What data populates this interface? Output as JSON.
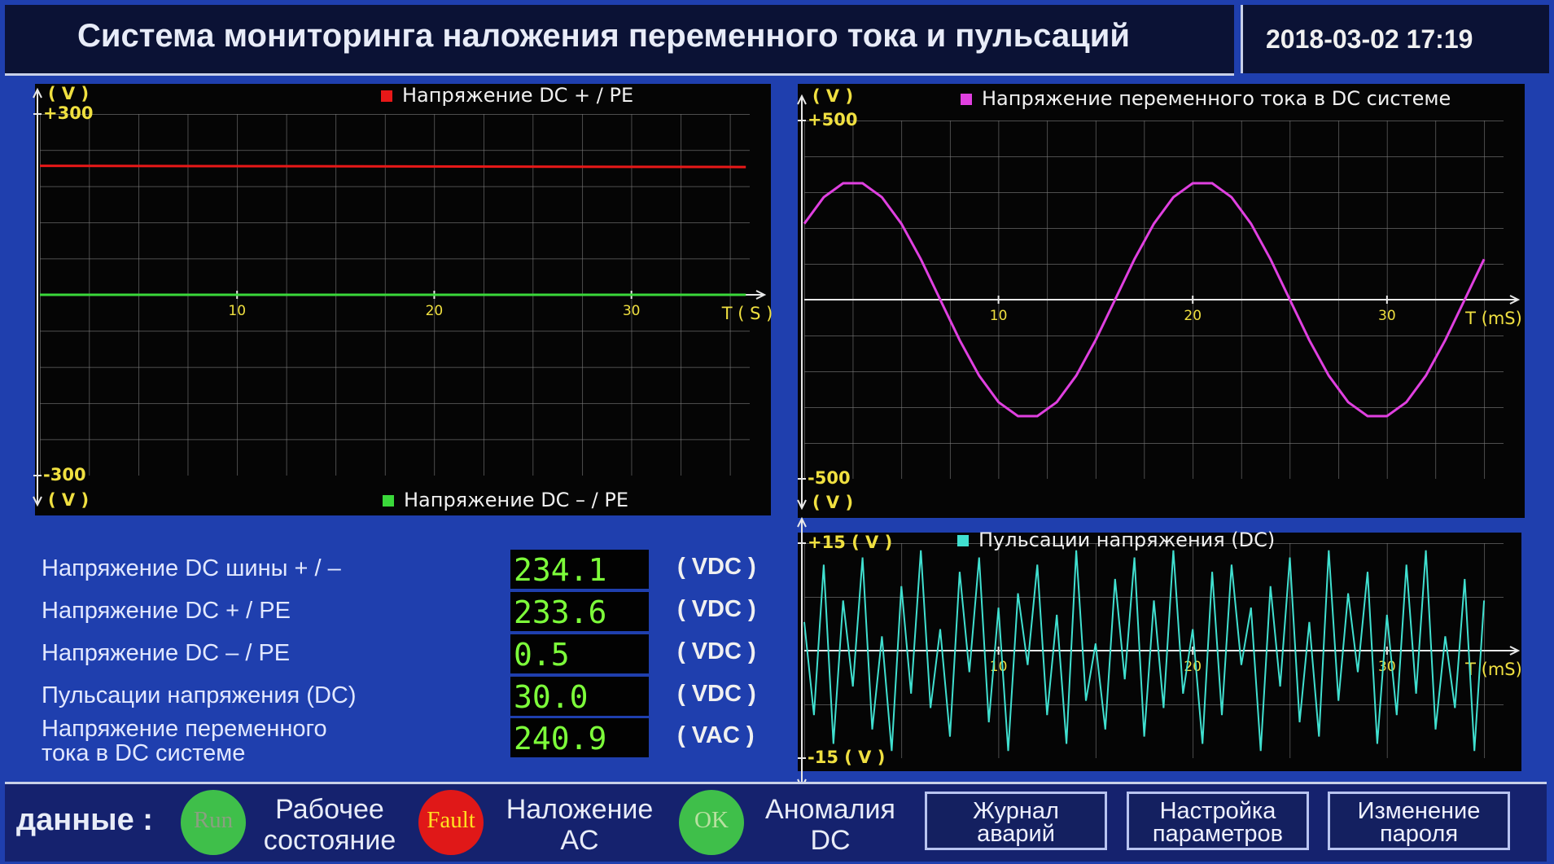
{
  "header": {
    "title": "Система мониторинга наложения переменного тока и пульсаций",
    "datetime": "2018-03-02 17:19"
  },
  "chart_data": [
    {
      "type": "line",
      "x": [
        0,
        35.8
      ],
      "series": [
        {
          "name": "Напряжение DC  + / PE",
          "color": "#e81818",
          "values": [
            214,
            212
          ]
        },
        {
          "name": "Напряжение DC  – / PE",
          "color": "#3ad83a",
          "values": [
            0,
            0
          ]
        }
      ],
      "xlabel": "T ( S )",
      "ylabel": "( V )",
      "xlim": [
        0,
        36
      ],
      "ylim": [
        -300,
        300
      ],
      "xticks": [
        10,
        20,
        30
      ],
      "yticks": [
        -300,
        {
          "value": 300,
          "label": "+300"
        }
      ],
      "grid": true
    },
    {
      "type": "line",
      "x": [
        0,
        1,
        2,
        3,
        4,
        5,
        6,
        7,
        8,
        9,
        10,
        11,
        12,
        13,
        14,
        15,
        16,
        17,
        18,
        19,
        20,
        21,
        22,
        23,
        24,
        25,
        26,
        27,
        28,
        29,
        30,
        31,
        32,
        33,
        34,
        35
      ],
      "series": [
        {
          "name": "Напряжение переменного тока в DC системе",
          "color": "#e040e0",
          "values": [
            212,
            286,
            325,
            325,
            286,
            212,
            113,
            0,
            -113,
            -212,
            -286,
            -325,
            -325,
            -286,
            -212,
            -113,
            0,
            113,
            212,
            286,
            325,
            325,
            286,
            212,
            113,
            0,
            -113,
            -212,
            -286,
            -325,
            -325,
            -286,
            -212,
            -113,
            0,
            113
          ]
        }
      ],
      "xlabel": "T (mS)",
      "ylabel": "( V )",
      "xlim": [
        0,
        36
      ],
      "ylim": [
        -500,
        500
      ],
      "xticks": [
        10,
        20,
        30
      ],
      "yticks": [
        -500,
        {
          "value": 500,
          "label": "+500"
        }
      ],
      "grid": true
    },
    {
      "type": "line",
      "x": [
        0,
        0.5,
        1,
        1.5,
        2,
        2.5,
        3,
        3.5,
        4,
        4.5,
        5,
        5.5,
        6,
        6.5,
        7,
        7.5,
        8,
        8.5,
        9,
        9.5,
        10,
        10.5,
        11,
        11.5,
        12,
        12.5,
        13,
        13.5,
        14,
        14.5,
        15,
        15.5,
        16,
        16.5,
        17,
        17.5,
        18,
        18.5,
        19,
        19.5,
        20,
        20.5,
        21,
        21.5,
        22,
        22.5,
        23,
        23.5,
        24,
        24.5,
        25,
        25.5,
        26,
        26.5,
        27,
        27.5,
        28,
        28.5,
        29,
        29.5,
        30,
        30.5,
        31,
        31.5,
        32,
        32.5,
        33,
        33.5,
        34,
        34.5,
        35
      ],
      "series": [
        {
          "name": "Пульсации напряжения (DC)",
          "color": "#40e0d0",
          "values": [
            4,
            -9,
            12,
            -13,
            7,
            -5,
            13,
            -11,
            2,
            -14,
            9,
            -6,
            14,
            -8,
            3,
            -12,
            11,
            -3,
            13,
            -10,
            6,
            -14,
            8,
            -2,
            12,
            -9,
            5,
            -13,
            14,
            -7,
            1,
            -11,
            10,
            -4,
            13,
            -12,
            7,
            -8,
            14,
            -6,
            3,
            -13,
            11,
            -9,
            12,
            -2,
            6,
            -14,
            9,
            -5,
            13,
            -10,
            4,
            -12,
            14,
            -7,
            8,
            -3,
            11,
            -13,
            5,
            -9,
            12,
            -6,
            14,
            -11,
            2,
            -8,
            10,
            -14,
            7
          ]
        }
      ],
      "xlabel": "T (mS)",
      "xlim": [
        0,
        36
      ],
      "ylim": [
        -15,
        15
      ],
      "xticks": [
        10,
        20,
        30
      ],
      "yticks": [
        {
          "value": -15,
          "label": "-15 ( V )"
        },
        {
          "value": 15,
          "label": "+15 ( V )"
        }
      ],
      "grid": true
    }
  ],
  "readouts": [
    {
      "label": [
        "Напряжение DC шины  + / –"
      ],
      "value": "234.1",
      "unit": "( VDC )"
    },
    {
      "label": [
        "Напряжение DC  + / PE"
      ],
      "value": "233.6",
      "unit": "( VDC )"
    },
    {
      "label": [
        "Напряжение DC  – / PE"
      ],
      "value": "0.5",
      "unit": "( VDC )"
    },
    {
      "label": [
        "Пульсации напряжения (DC)"
      ],
      "value": "30.0",
      "unit": "( VDC )"
    },
    {
      "label": [
        "Напряжение переменного",
        "тока в DC системе"
      ],
      "value": "240.9",
      "unit": "( VAC )"
    }
  ],
  "status": {
    "label": "данные :",
    "indicators": [
      {
        "icon": "Run",
        "label": [
          "Рабочее",
          "состояние"
        ],
        "color": "#3fbf4a"
      },
      {
        "icon": "Fault",
        "label": [
          "Наложение",
          "AC"
        ],
        "color": "#e01818"
      },
      {
        "icon": "OK",
        "label": [
          "Аномалия",
          "DC"
        ],
        "color": "#3fbf4a"
      }
    ]
  },
  "buttons": [
    [
      "Журнал",
      "аварий"
    ],
    [
      "Настройка",
      "параметров"
    ],
    [
      "Изменение",
      "пароля"
    ]
  ]
}
